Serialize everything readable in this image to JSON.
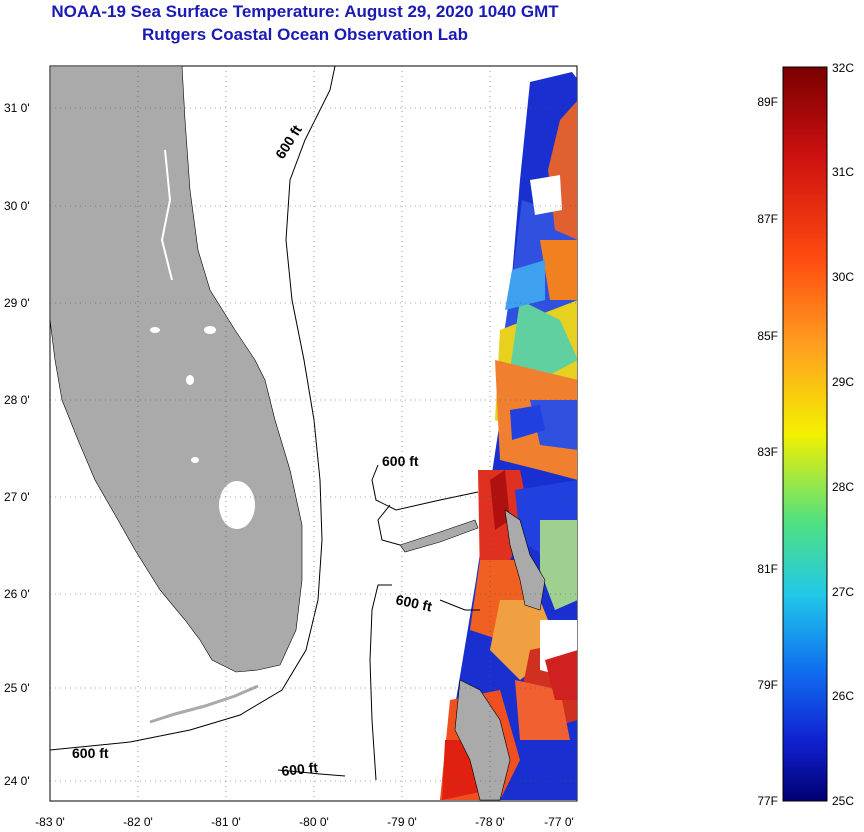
{
  "header": {
    "title": "NOAA-19 Sea Surface Temperature:  August 29, 2020 1040 GMT",
    "subtitle": "Rutgers Coastal Ocean Observation Lab"
  },
  "map": {
    "latitude_labels": [
      "31 0'",
      "30 0'",
      "29 0'",
      "28 0'",
      "27 0'",
      "26 0'",
      "25 0'",
      "24 0'"
    ],
    "longitude_labels": [
      "-83 0'",
      "-82 0'",
      "-81 0'",
      "-80 0'",
      "-79 0'",
      "-78 0'",
      "-77 0'"
    ],
    "contour_labels": [
      "600 ft",
      "600 ft",
      "600 ft",
      "600 ft",
      "600 ft"
    ],
    "land_color": "#aaaaaa",
    "background_color": "#ffffff"
  },
  "colorbar": {
    "celsius_labels": [
      "32C",
      "31C",
      "30C",
      "29C",
      "28C",
      "27C",
      "26C",
      "25C"
    ],
    "fahrenheit_labels": [
      "89F",
      "87F",
      "85F",
      "83F",
      "81F",
      "79F",
      "77F"
    ],
    "colors": [
      "#7a0000",
      "#d01010",
      "#ff5010",
      "#ffa020",
      "#ffff00",
      "#60e060",
      "#20d0e0",
      "#1080ff",
      "#1020d0",
      "#000080"
    ]
  }
}
